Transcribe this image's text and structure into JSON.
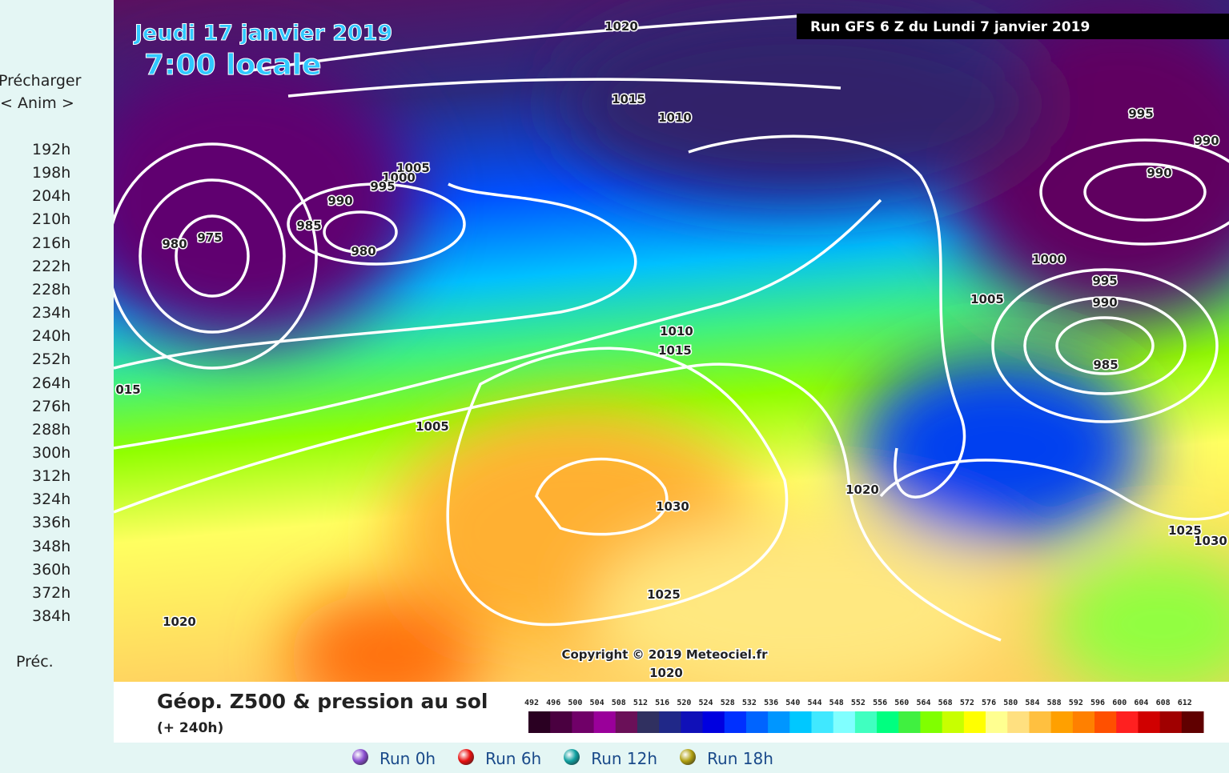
{
  "sidebar": {
    "preload": "Précharger",
    "anim": "< Anim >",
    "hours": [
      {
        "label": "192h",
        "color": "#e81010"
      },
      {
        "label": "198h",
        "color": "#e81010"
      },
      {
        "label": "204h",
        "color": "#e81010"
      },
      {
        "label": "210h",
        "color": "#e81010"
      },
      {
        "label": "216h",
        "color": "#e81010"
      },
      {
        "label": "222h",
        "color": "#e81010"
      },
      {
        "label": "228h",
        "color": "#e81010"
      },
      {
        "label": "234h",
        "color": "#e81010"
      },
      {
        "label": "240h",
        "color": "#e81010"
      },
      {
        "label": "252h",
        "color": "#8a4ed0"
      },
      {
        "label": "264h",
        "color": "#8a4ed0"
      },
      {
        "label": "276h",
        "color": "#8a4ed0"
      },
      {
        "label": "288h",
        "color": "#8a4ed0"
      },
      {
        "label": "300h",
        "color": "#8a4ed0"
      },
      {
        "label": "312h",
        "color": "#8a4ed0"
      },
      {
        "label": "324h",
        "color": "#8a4ed0"
      },
      {
        "label": "336h",
        "color": "#8a4ed0"
      },
      {
        "label": "348h",
        "color": "#8a4ed0"
      },
      {
        "label": "360h",
        "color": "#8a4ed0"
      },
      {
        "label": "372h",
        "color": "#8a4ed0"
      },
      {
        "label": "384h",
        "color": "#8a4ed0"
      }
    ],
    "prev": "Préc."
  },
  "map": {
    "date": "Jeudi 17 janvier 2019",
    "time": "7:00 locale",
    "run": "Run GFS 6 Z du Lundi 7 janvier 2019",
    "copyright": "Copyright © 2019 Meteociel.fr",
    "isobar_labels": [
      "1020",
      "1015",
      "1010",
      "1005",
      "1000",
      "995",
      "990",
      "985",
      "980",
      "975",
      "980",
      "995",
      "990",
      "990",
      "1000",
      "995",
      "990",
      "1005",
      "985",
      "1010",
      "1015",
      "015",
      "1005",
      "1020",
      "1030",
      "1025",
      "1030",
      "1025",
      "1020",
      "1020"
    ]
  },
  "legend": {
    "title": "Géop. Z500 & pression au sol",
    "subtitle": "(+ 240h)",
    "scale": [
      {
        "label": "492",
        "color": "#2a0022"
      },
      {
        "label": "496",
        "color": "#4a0040"
      },
      {
        "label": "500",
        "color": "#700068"
      },
      {
        "label": "504",
        "color": "#9a009a"
      },
      {
        "label": "508",
        "color": "#6a1058"
      },
      {
        "label": "512",
        "color": "#303060"
      },
      {
        "label": "516",
        "color": "#202888"
      },
      {
        "label": "520",
        "color": "#1010b8"
      },
      {
        "label": "524",
        "color": "#0000e0"
      },
      {
        "label": "528",
        "color": "#0030ff"
      },
      {
        "label": "532",
        "color": "#0064ff"
      },
      {
        "label": "536",
        "color": "#0096ff"
      },
      {
        "label": "540",
        "color": "#00c8ff"
      },
      {
        "label": "544",
        "color": "#40e8ff"
      },
      {
        "label": "548",
        "color": "#80ffff"
      },
      {
        "label": "552",
        "color": "#40ffc0"
      },
      {
        "label": "556",
        "color": "#00ff80"
      },
      {
        "label": "560",
        "color": "#40f040"
      },
      {
        "label": "564",
        "color": "#80ff00"
      },
      {
        "label": "568",
        "color": "#c8ff00"
      },
      {
        "label": "572",
        "color": "#ffff00"
      },
      {
        "label": "576",
        "color": "#ffff90"
      },
      {
        "label": "580",
        "color": "#ffe080"
      },
      {
        "label": "584",
        "color": "#ffc040"
      },
      {
        "label": "588",
        "color": "#ffa000"
      },
      {
        "label": "592",
        "color": "#ff8000"
      },
      {
        "label": "596",
        "color": "#ff5000"
      },
      {
        "label": "600",
        "color": "#ff2020"
      },
      {
        "label": "604",
        "color": "#d00000"
      },
      {
        "label": "608",
        "color": "#a00000"
      },
      {
        "label": "612",
        "color": "#600000"
      }
    ]
  },
  "runs": [
    {
      "label": "Run 0h",
      "color": "#8a4ed0"
    },
    {
      "label": "Run 6h",
      "color": "#e81010"
    },
    {
      "label": "Run 12h",
      "color": "#10a0a0"
    },
    {
      "label": "Run 18h",
      "color": "#b0a010"
    }
  ]
}
